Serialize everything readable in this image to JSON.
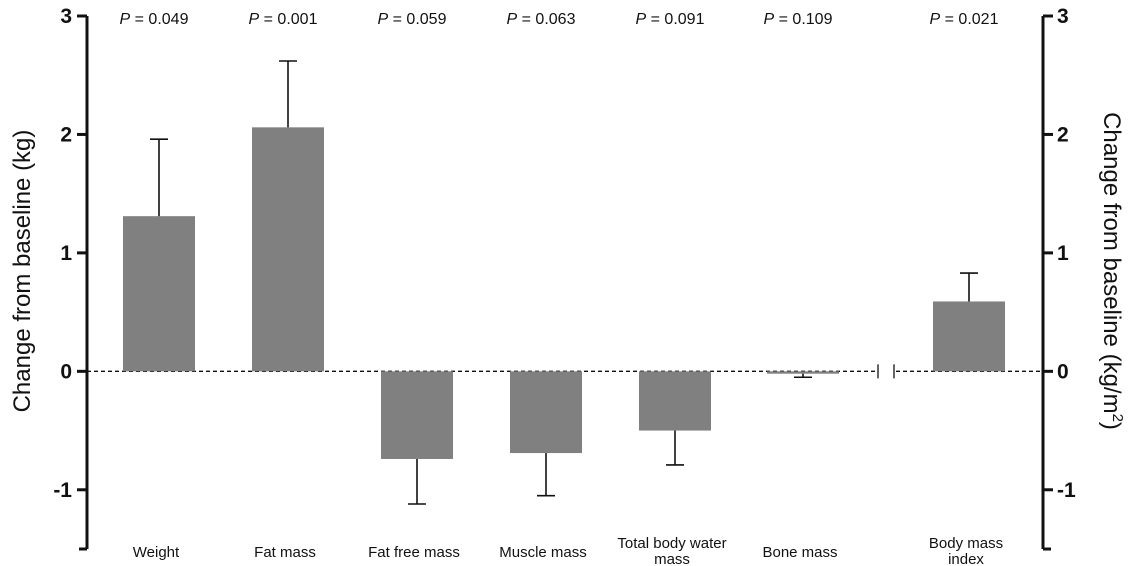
{
  "chart_data": {
    "type": "bar",
    "categories": [
      "Weight",
      "Fat mass",
      "Fat free mass",
      "Muscle mass",
      "Total body water mass",
      "Bone mass",
      "Body mass index"
    ],
    "category_lines": [
      [
        "Weight"
      ],
      [
        "Fat mass"
      ],
      [
        "Fat free mass"
      ],
      [
        "Muscle mass"
      ],
      [
        "Total body water",
        "mass"
      ],
      [
        "Bone mass"
      ],
      [
        "Body mass",
        "index"
      ]
    ],
    "values": [
      1.31,
      2.06,
      -0.74,
      -0.69,
      -0.5,
      -0.02,
      0.59
    ],
    "error": [
      0.65,
      0.56,
      0.38,
      0.36,
      0.29,
      0.03,
      0.24
    ],
    "axis": [
      "left",
      "left",
      "left",
      "left",
      "left",
      "left",
      "right"
    ],
    "p_values": [
      "0.049",
      "0.001",
      "0.059",
      "0.063",
      "0.091",
      "0.109",
      "0.021"
    ],
    "p_prefix": "P",
    "p_equals": " = ",
    "ylabel_left": "Change from baseline (kg)",
    "ylabel_right_main": "Change from baseline (kg/m",
    "ylabel_right_sup": "2",
    "ylabel_right_close": ")",
    "ylim": [
      -1.5,
      3
    ],
    "yticks": [
      -1,
      0,
      1,
      2,
      3
    ],
    "ytick_labels": [
      "-1",
      "0",
      "1",
      "2",
      "3"
    ],
    "reference_line": 0,
    "axis_break": true,
    "grid": false,
    "bar_color": "#808080"
  }
}
